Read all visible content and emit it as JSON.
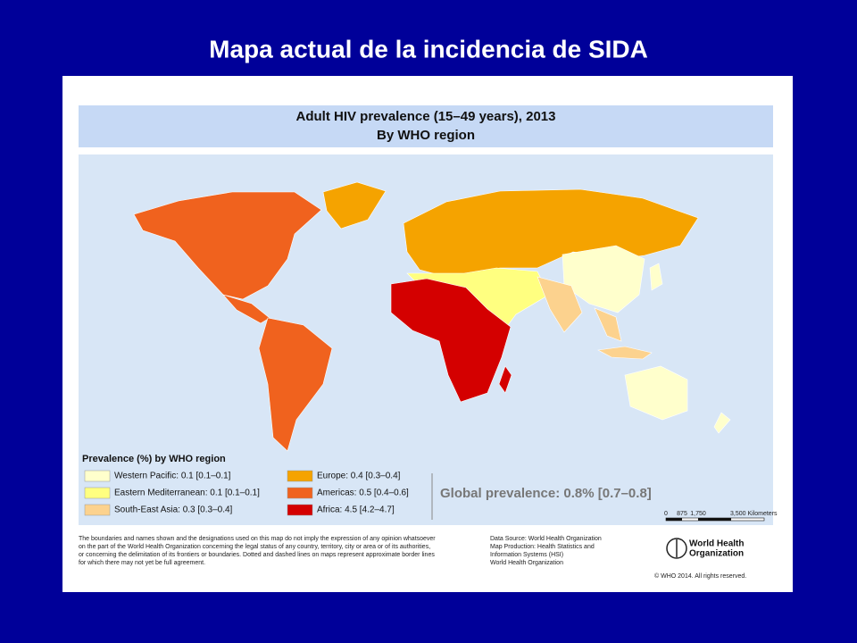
{
  "slide_title": "Mapa actual de la incidencia de SIDA",
  "map": {
    "title": "Adult HIV prevalence (15–49 years), 2013",
    "subtitle": "By WHO region",
    "legend": {
      "title": "Prevalence (%) by WHO region",
      "items": [
        {
          "label": "Western Pacific: 0.1 [0.1–0.1]",
          "color": "#ffffcc"
        },
        {
          "label": "Eastern Mediterranean: 0.1 [0.1–0.1]",
          "color": "#ffff80"
        },
        {
          "label": "South-East Asia: 0.3 [0.3–0.4]",
          "color": "#fcd28e"
        },
        {
          "label": "Europe: 0.4 [0.3–0.4]",
          "color": "#f5a300"
        },
        {
          "label": "Americas: 0.5 [0.4–0.6]",
          "color": "#f0621e"
        },
        {
          "label": "Africa: 4.5 [4.2–4.7]",
          "color": "#d40000"
        }
      ]
    },
    "global_prevalence": "Global prevalence: 0.8% [0.7–0.8]",
    "scale": [
      "0",
      "875",
      "1,750",
      "3,500 Kilometers"
    ],
    "disclaimer": [
      "The boundaries and names shown and the designations used on this map do not imply the expression of any opinion whatsoever",
      "on the part of the World Health Organization concerning the legal status of any country, territory, city or area or of its authorities,",
      "or concerning the delimitation of its frontiers or boundaries. Dotted and dashed lines on maps represent approximate border lines",
      "for which there may not yet be full agreement."
    ],
    "source": [
      "Data Source: World Health Organization",
      "Map Production: Health Statistics and",
      "Information Systems (HSI)",
      "World Health Organization"
    ],
    "logo": [
      "World Health",
      "Organization"
    ],
    "copyright": "© WHO 2014. All rights reserved."
  }
}
